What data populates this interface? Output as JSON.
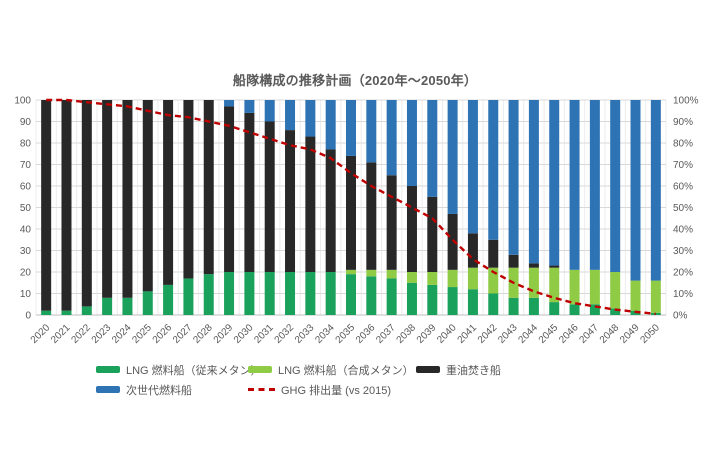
{
  "chart_data": {
    "type": "bar",
    "stacked": true,
    "title": "船隊構成の推移計画（2020年～2050年）",
    "categories": [
      "2020",
      "2021",
      "2022",
      "2023",
      "2024",
      "2025",
      "2026",
      "2027",
      "2028",
      "2029",
      "2030",
      "2031",
      "2032",
      "2033",
      "2034",
      "2035",
      "2036",
      "2037",
      "2038",
      "2039",
      "2040",
      "2041",
      "2042",
      "2043",
      "2044",
      "2045",
      "2046",
      "2047",
      "2048",
      "2049",
      "2050"
    ],
    "series": [
      {
        "name": "LNG 燃料船（従来メタン）",
        "type": "bar",
        "color": "#1AA15C",
        "values": [
          2,
          2,
          4,
          8,
          8,
          11,
          14,
          17,
          19,
          20,
          20,
          20,
          20,
          20,
          20,
          19,
          18,
          17,
          15,
          14,
          13,
          12,
          10,
          8,
          8,
          6,
          5,
          5,
          3,
          2,
          1
        ]
      },
      {
        "name": "LNG 燃料船（合成メタン）",
        "type": "bar",
        "color": "#8FCB45",
        "values": [
          0,
          0,
          0,
          0,
          0,
          0,
          0,
          0,
          0,
          0,
          0,
          0,
          0,
          0,
          0,
          2,
          3,
          4,
          5,
          6,
          8,
          10,
          12,
          14,
          14,
          16,
          16,
          16,
          17,
          14,
          15
        ]
      },
      {
        "name": "重油焚き船",
        "type": "bar",
        "color": "#282828",
        "values": [
          98,
          98,
          96,
          92,
          92,
          89,
          86,
          83,
          81,
          77,
          74,
          70,
          66,
          63,
          57,
          53,
          50,
          44,
          40,
          35,
          26,
          16,
          13,
          6,
          2,
          1,
          0,
          0,
          0,
          0,
          0
        ]
      },
      {
        "name": "次世代燃料船",
        "type": "bar",
        "color": "#2E74B5",
        "values": [
          0,
          0,
          0,
          0,
          0,
          0,
          0,
          0,
          0,
          3,
          6,
          10,
          14,
          17,
          23,
          26,
          29,
          35,
          40,
          45,
          53,
          62,
          65,
          72,
          76,
          77,
          79,
          79,
          80,
          84,
          84
        ]
      },
      {
        "name": "GHG 排出量 (vs 2015)",
        "type": "line",
        "style": "dashed",
        "color": "#C00000",
        "values": [
          100,
          100,
          99,
          98,
          97,
          95,
          93,
          92,
          90,
          88,
          85,
          82,
          79,
          77,
          73,
          66,
          60,
          55,
          50,
          45,
          35,
          26,
          20,
          15,
          11,
          8,
          5.5,
          4,
          2.5,
          1.5,
          0.5
        ]
      }
    ],
    "stack_order_bottom_to_top": [
      0,
      1,
      2,
      3
    ],
    "ylim": [
      0,
      100
    ],
    "y_ticks_left": [
      "0",
      "10",
      "20",
      "30",
      "40",
      "50",
      "60",
      "70",
      "80",
      "90",
      "100"
    ],
    "y_ticks_right": [
      "0%",
      "10%",
      "20%",
      "30%",
      "40%",
      "50%",
      "60%",
      "70%",
      "80%",
      "90%",
      "100%"
    ],
    "grid": "horizontal",
    "legend_position": "bottom",
    "legend_rows": [
      [
        0,
        1,
        2
      ],
      [
        3,
        4
      ]
    ],
    "colors": {
      "axis_text": "#595959",
      "gridline": "#D9D9D9",
      "vertical_gridline": "#ECECEC",
      "baseline": "#BFBFBF",
      "title_text": "#595959"
    }
  }
}
